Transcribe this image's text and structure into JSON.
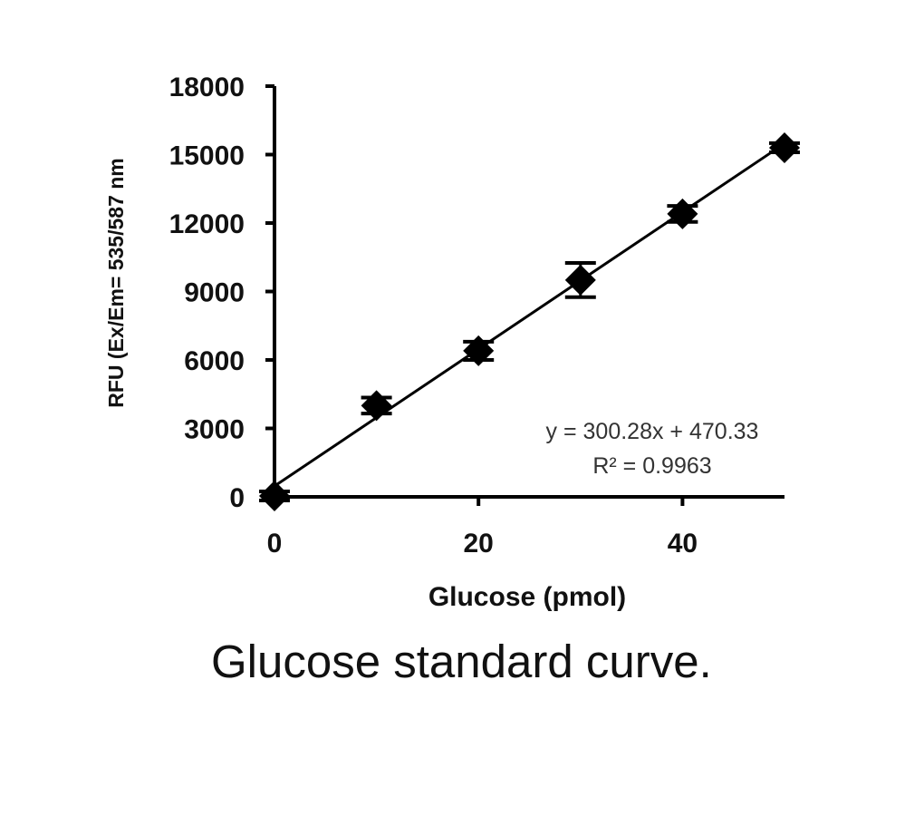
{
  "chart_data": {
    "type": "scatter",
    "title": "",
    "caption": "Glucose standard curve.",
    "xlabel": "Glucose (pmol)",
    "ylabel": "RFU (Ex/Em= 535/587 nm",
    "xlim": [
      0,
      50
    ],
    "ylim": [
      0,
      18000
    ],
    "xticks": [
      0,
      20,
      40
    ],
    "yticks": [
      0,
      3000,
      6000,
      9000,
      12000,
      15000,
      18000
    ],
    "grid": false,
    "legend": null,
    "series": [
      {
        "name": "Glucose standard",
        "marker": "diamond",
        "color": "#000000",
        "x": [
          0,
          10,
          20,
          30,
          40,
          50
        ],
        "y": [
          40,
          4000,
          6400,
          9500,
          12400,
          15300
        ],
        "error": [
          200,
          350,
          400,
          750,
          350,
          200
        ]
      }
    ],
    "trendline": {
      "type": "linear",
      "slope": 300.28,
      "intercept": 470.33,
      "x_range": [
        0,
        50
      ],
      "equation_label": "y = 300.28x + 470.33",
      "r2_label": "R² = 0.9963"
    }
  }
}
